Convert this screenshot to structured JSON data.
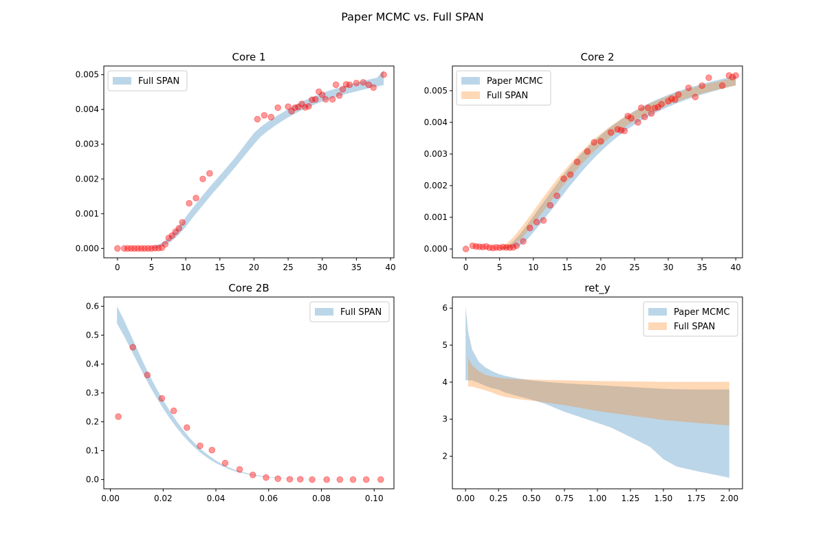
{
  "figure": {
    "suptitle": "Paper MCMC vs. Full SPAN"
  },
  "colors": {
    "paper_mcmc": "#1f77b4",
    "full_span": "#ff7f0e",
    "points": "#ff0000"
  },
  "chart_data": [
    {
      "id": "core1",
      "type": "area",
      "title": "Core 1",
      "xlabel": "",
      "ylabel": "",
      "xlim": [
        -2,
        40.5
      ],
      "ylim": [
        -0.00027,
        0.00525
      ],
      "xticks": [
        0,
        5,
        10,
        15,
        20,
        25,
        30,
        35,
        40
      ],
      "xtick_labels": [
        "0",
        "5",
        "10",
        "15",
        "20",
        "25",
        "30",
        "35",
        "40"
      ],
      "yticks": [
        0,
        0.001,
        0.002,
        0.003,
        0.004,
        0.005
      ],
      "ytick_labels": [
        "0.000",
        "0.001",
        "0.002",
        "0.003",
        "0.004",
        "0.005"
      ],
      "legend": {
        "placement": "upper-left",
        "entries": [
          "Full SPAN"
        ]
      },
      "bands": [
        {
          "name": "Full SPAN",
          "color": "#1f77b4",
          "x": [
            5,
            6,
            7,
            8,
            9,
            10,
            11,
            12,
            13,
            14,
            15,
            16,
            17,
            18,
            19,
            20,
            21,
            22,
            23,
            24,
            25,
            26,
            27,
            28,
            29,
            30,
            31,
            32,
            33,
            34,
            35,
            36,
            37,
            38,
            39
          ],
          "lower": [
            0,
            2e-05,
            0.0001,
            0.00022,
            0.0004,
            0.00062,
            0.00088,
            0.00112,
            0.00136,
            0.0016,
            0.00182,
            0.00205,
            0.00228,
            0.00252,
            0.00276,
            0.003,
            0.00322,
            0.00338,
            0.00352,
            0.00365,
            0.00377,
            0.00388,
            0.00398,
            0.00407,
            0.00415,
            0.00423,
            0.0043,
            0.00436,
            0.00442,
            0.00447,
            0.00452,
            0.00457,
            0.00462,
            0.00466,
            0.0047
          ],
          "upper": [
            3e-05,
            0.00011,
            0.00022,
            0.00042,
            0.00065,
            0.0009,
            0.00116,
            0.00141,
            0.00165,
            0.00188,
            0.0021,
            0.00233,
            0.00256,
            0.00281,
            0.00307,
            0.00332,
            0.0035,
            0.00364,
            0.00377,
            0.00389,
            0.00401,
            0.00412,
            0.00422,
            0.00431,
            0.00439,
            0.00447,
            0.00454,
            0.0046,
            0.00466,
            0.00472,
            0.00477,
            0.00482,
            0.00487,
            0.00491,
            0.00512
          ]
        }
      ],
      "points": {
        "color": "#ff0000",
        "x": [
          0,
          1,
          1.5,
          2,
          2.5,
          3,
          3.5,
          4,
          4.5,
          5,
          5.5,
          6,
          6.5,
          7,
          7.5,
          8,
          8.5,
          9,
          9.5,
          10.5,
          11.5,
          12.5,
          13.5,
          20.5,
          21.5,
          22.5,
          23.5,
          25,
          25.5,
          26,
          26.5,
          27,
          27.5,
          28,
          28.5,
          29,
          29.5,
          30,
          30.5,
          31.5,
          32,
          32.5,
          33,
          33.5,
          34,
          35,
          36,
          36.8,
          37.5,
          39
        ],
        "y": [
          0,
          0,
          0,
          0,
          0,
          0,
          0,
          0,
          0,
          0,
          1e-05,
          1e-05,
          2e-05,
          0.00012,
          0.0003,
          0.00037,
          0.00048,
          0.00058,
          0.00075,
          0.0013,
          0.00145,
          0.002,
          0.00216,
          0.00372,
          0.00383,
          0.00378,
          0.00405,
          0.00408,
          0.00395,
          0.00405,
          0.00407,
          0.00416,
          0.00406,
          0.00409,
          0.00428,
          0.00429,
          0.00451,
          0.00442,
          0.00429,
          0.00429,
          0.00471,
          0.0044,
          0.00458,
          0.00472,
          0.00471,
          0.00476,
          0.00478,
          0.00471,
          0.00463,
          0.005
        ]
      }
    },
    {
      "id": "core2",
      "type": "area",
      "title": "Core 2",
      "xlabel": "",
      "ylabel": "",
      "xlim": [
        -2,
        41
      ],
      "ylim": [
        -0.00028,
        0.00578
      ],
      "xticks": [
        0,
        5,
        10,
        15,
        20,
        25,
        30,
        35,
        40
      ],
      "xtick_labels": [
        "0",
        "5",
        "10",
        "15",
        "20",
        "25",
        "30",
        "35",
        "40"
      ],
      "yticks": [
        0,
        0.001,
        0.002,
        0.003,
        0.004,
        0.005
      ],
      "ytick_labels": [
        "0.000",
        "0.001",
        "0.002",
        "0.003",
        "0.004",
        "0.005"
      ],
      "legend": {
        "placement": "upper-left",
        "entries": [
          "Paper MCMC",
          "Full SPAN"
        ]
      },
      "bands": [
        {
          "name": "Paper MCMC",
          "color": "#1f77b4",
          "x": [
            5,
            6,
            7,
            8,
            9,
            10,
            11,
            12,
            13,
            14,
            15,
            16,
            17,
            18,
            19,
            20,
            21,
            22,
            23,
            24,
            25,
            26,
            27,
            28,
            29,
            30,
            31,
            32,
            33,
            34,
            35,
            36,
            37,
            38,
            39,
            40
          ],
          "lower": [
            0,
            0,
            3e-05,
            0.0001,
            0.00028,
            0.00052,
            0.00078,
            0.00105,
            0.00132,
            0.0016,
            0.00188,
            0.00214,
            0.0024,
            0.00264,
            0.00287,
            0.00308,
            0.00328,
            0.00346,
            0.00363,
            0.00379,
            0.00393,
            0.00406,
            0.00418,
            0.00429,
            0.00439,
            0.00449,
            0.00458,
            0.00466,
            0.00474,
            0.00481,
            0.00488,
            0.00494,
            0.005,
            0.00506,
            0.00512,
            0.00517
          ],
          "upper": [
            2e-05,
            8e-05,
            0.00023,
            0.00046,
            0.00074,
            0.00103,
            0.00133,
            0.00162,
            0.00191,
            0.0022,
            0.00248,
            0.00274,
            0.00298,
            0.0032,
            0.00341,
            0.0036,
            0.00378,
            0.00394,
            0.00409,
            0.00423,
            0.00436,
            0.00448,
            0.00459,
            0.00469,
            0.00478,
            0.00487,
            0.00495,
            0.00502,
            0.00509,
            0.00515,
            0.00521,
            0.00527,
            0.00532,
            0.00537,
            0.00542,
            0.00547
          ]
        },
        {
          "name": "Full SPAN",
          "color": "#ff7f0e",
          "x": [
            5,
            6,
            7,
            8,
            9,
            10,
            11,
            12,
            13,
            14,
            15,
            16,
            17,
            18,
            19,
            20,
            21,
            22,
            23,
            24,
            25,
            26,
            27,
            28,
            29,
            30,
            31,
            32,
            33,
            34,
            35,
            36,
            37,
            38,
            39,
            40
          ],
          "lower": [
            1e-05,
            3e-05,
            0.00012,
            0.00028,
            0.00052,
            0.00078,
            0.00106,
            0.00134,
            0.00162,
            0.00189,
            0.00215,
            0.0024,
            0.00264,
            0.00287,
            0.00308,
            0.00328,
            0.00346,
            0.00363,
            0.00378,
            0.00392,
            0.00405,
            0.00417,
            0.00428,
            0.00438,
            0.00447,
            0.00456,
            0.00464,
            0.00471,
            0.00478,
            0.00485,
            0.00491,
            0.00497,
            0.00502,
            0.00507,
            0.00512,
            0.00516
          ],
          "upper": [
            4e-05,
            0.00016,
            0.00036,
            0.00062,
            0.0009,
            0.00119,
            0.00149,
            0.00178,
            0.00206,
            0.00233,
            0.00258,
            0.00282,
            0.00305,
            0.00326,
            0.00346,
            0.00364,
            0.00381,
            0.00396,
            0.0041,
            0.00423,
            0.00435,
            0.00446,
            0.00456,
            0.00466,
            0.00475,
            0.00483,
            0.00491,
            0.00498,
            0.00505,
            0.00511,
            0.00517,
            0.00522,
            0.00527,
            0.00532,
            0.00537,
            0.00541
          ]
        }
      ],
      "points": {
        "color": "#ff0000",
        "x": [
          0,
          1,
          1.5,
          2,
          2.5,
          3,
          3.5,
          4,
          4.5,
          5,
          5.5,
          6,
          6.5,
          7,
          7.5,
          8.5,
          9.5,
          10.5,
          11.5,
          12.5,
          13.5,
          14.5,
          15.5,
          16.5,
          18,
          19,
          20,
          21.5,
          22.5,
          23,
          23.5,
          24,
          24.5,
          25.5,
          26,
          26.5,
          27,
          27.5,
          28,
          28.5,
          29,
          30,
          30.5,
          31,
          31.5,
          33,
          34,
          35,
          36,
          38,
          39,
          39.5,
          40
        ],
        "y": [
          0,
          0.0001,
          8e-05,
          7e-05,
          6e-05,
          8e-05,
          4e-05,
          3e-05,
          5e-05,
          4e-05,
          6e-05,
          5e-05,
          4e-05,
          5e-05,
          0.0001,
          0.00024,
          0.00066,
          0.00085,
          0.0009,
          0.00138,
          0.00168,
          0.00222,
          0.00235,
          0.00275,
          0.00308,
          0.00337,
          0.0034,
          0.00368,
          0.00378,
          0.00375,
          0.00373,
          0.0042,
          0.00413,
          0.004,
          0.00446,
          0.00417,
          0.00446,
          0.00428,
          0.00445,
          0.00448,
          0.00457,
          0.00467,
          0.00475,
          0.00472,
          0.00488,
          0.00509,
          0.0048,
          0.00516,
          0.00541,
          0.00516,
          0.00548,
          0.00543,
          0.00548
        ]
      }
    },
    {
      "id": "core2b",
      "type": "area",
      "title": "Core 2B",
      "xlabel": "",
      "ylabel": "",
      "xlim": [
        -0.0025,
        0.1075
      ],
      "ylim": [
        -0.032,
        0.632
      ],
      "xticks": [
        0,
        0.02,
        0.04,
        0.06,
        0.08,
        0.1
      ],
      "xtick_labels": [
        "0.00",
        "0.02",
        "0.04",
        "0.06",
        "0.08",
        "0.10"
      ],
      "yticks": [
        0,
        0.1,
        0.2,
        0.3,
        0.4,
        0.5,
        0.6
      ],
      "ytick_labels": [
        "0.0",
        "0.1",
        "0.2",
        "0.3",
        "0.4",
        "0.5",
        "0.6"
      ],
      "legend": {
        "placement": "upper-right",
        "entries": [
          "Full SPAN"
        ]
      },
      "bands": [
        {
          "name": "Full SPAN",
          "color": "#1f77b4",
          "x": [
            0.0025,
            0.005,
            0.0075,
            0.01,
            0.0125,
            0.015,
            0.0175,
            0.02,
            0.0225,
            0.025,
            0.0275,
            0.03,
            0.0325,
            0.035,
            0.0375,
            0.04,
            0.0425,
            0.045,
            0.0475,
            0.05,
            0.055,
            0.06,
            0.065,
            0.07,
            0.075,
            0.08,
            0.085,
            0.09,
            0.095,
            0.1
          ],
          "lower": [
            0.54,
            0.5,
            0.455,
            0.41,
            0.365,
            0.322,
            0.283,
            0.246,
            0.212,
            0.181,
            0.153,
            0.128,
            0.106,
            0.087,
            0.071,
            0.057,
            0.046,
            0.036,
            0.028,
            0.022,
            0.013,
            0.007,
            0.004,
            0.002,
            0.001,
            0.0005,
            0.0002,
            0.0001,
            0,
            0
          ],
          "upper": [
            0.6,
            0.555,
            0.505,
            0.455,
            0.405,
            0.358,
            0.315,
            0.275,
            0.238,
            0.204,
            0.173,
            0.145,
            0.121,
            0.1,
            0.082,
            0.066,
            0.053,
            0.042,
            0.033,
            0.026,
            0.016,
            0.009,
            0.005,
            0.003,
            0.0015,
            0.0008,
            0.0004,
            0.0002,
            0.0001,
            0.0001
          ]
        }
      ],
      "points": {
        "color": "#ff0000",
        "x": [
          0.003,
          0.0085,
          0.014,
          0.0195,
          0.024,
          0.029,
          0.034,
          0.0385,
          0.0435,
          0.049,
          0.054,
          0.059,
          0.0635,
          0.068,
          0.072,
          0.0765,
          0.082,
          0.087,
          0.092,
          0.097,
          0.1025
        ],
        "y": [
          0.218,
          0.458,
          0.362,
          0.281,
          0.238,
          0.18,
          0.117,
          0.102,
          0.057,
          0.035,
          0.016,
          0.007,
          0.003,
          0.001,
          0.001,
          0,
          0,
          0,
          0,
          0,
          0
        ]
      }
    },
    {
      "id": "ret_y",
      "type": "area",
      "title": "ret_y",
      "xlabel": "",
      "ylabel": "",
      "xlim": [
        -0.1,
        2.1
      ],
      "ylim": [
        1.12,
        6.3
      ],
      "xticks": [
        0,
        0.25,
        0.5,
        0.75,
        1,
        1.25,
        1.5,
        1.75,
        2
      ],
      "xtick_labels": [
        "0.00",
        "0.25",
        "0.50",
        "0.75",
        "1.00",
        "1.25",
        "1.50",
        "1.75",
        "2.00"
      ],
      "yticks": [
        2,
        3,
        4,
        5,
        6
      ],
      "ytick_labels": [
        "2",
        "3",
        "4",
        "5",
        "6"
      ],
      "legend": {
        "placement": "upper-right",
        "entries": [
          "Paper MCMC",
          "Full SPAN"
        ]
      },
      "bands": [
        {
          "name": "Paper MCMC",
          "color": "#1f77b4",
          "x": [
            0,
            0.02,
            0.05,
            0.1,
            0.15,
            0.2,
            0.25,
            0.3,
            0.4,
            0.5,
            0.6,
            0.75,
            1,
            1.1,
            1.25,
            1.4,
            1.5,
            1.6,
            1.75,
            2
          ],
          "lower": [
            4.05,
            4.05,
            4.05,
            3.98,
            3.9,
            3.84,
            3.8,
            3.72,
            3.62,
            3.53,
            3.42,
            3.2,
            2.9,
            2.78,
            2.52,
            2.25,
            1.92,
            1.72,
            1.6,
            1.42
          ],
          "upper": [
            6.05,
            5.35,
            4.88,
            4.55,
            4.4,
            4.3,
            4.22,
            4.17,
            4.1,
            4.05,
            4.01,
            3.97,
            3.92,
            3.9,
            3.87,
            3.84,
            3.82,
            3.81,
            3.8,
            3.8
          ]
        },
        {
          "name": "Full SPAN",
          "color": "#ff7f0e",
          "x": [
            0.02,
            0.05,
            0.1,
            0.15,
            0.2,
            0.25,
            0.3,
            0.4,
            0.5,
            0.75,
            1,
            1.25,
            1.5,
            1.75,
            2
          ],
          "lower": [
            3.88,
            3.88,
            3.83,
            3.78,
            3.72,
            3.65,
            3.6,
            3.54,
            3.5,
            3.38,
            3.22,
            3.1,
            2.98,
            2.9,
            2.83
          ],
          "upper": [
            4.65,
            4.45,
            4.3,
            4.2,
            4.15,
            4.12,
            4.1,
            4.08,
            4.07,
            4.05,
            4.03,
            4.02,
            4.01,
            4.01,
            4.01
          ]
        }
      ],
      "points": null
    }
  ]
}
